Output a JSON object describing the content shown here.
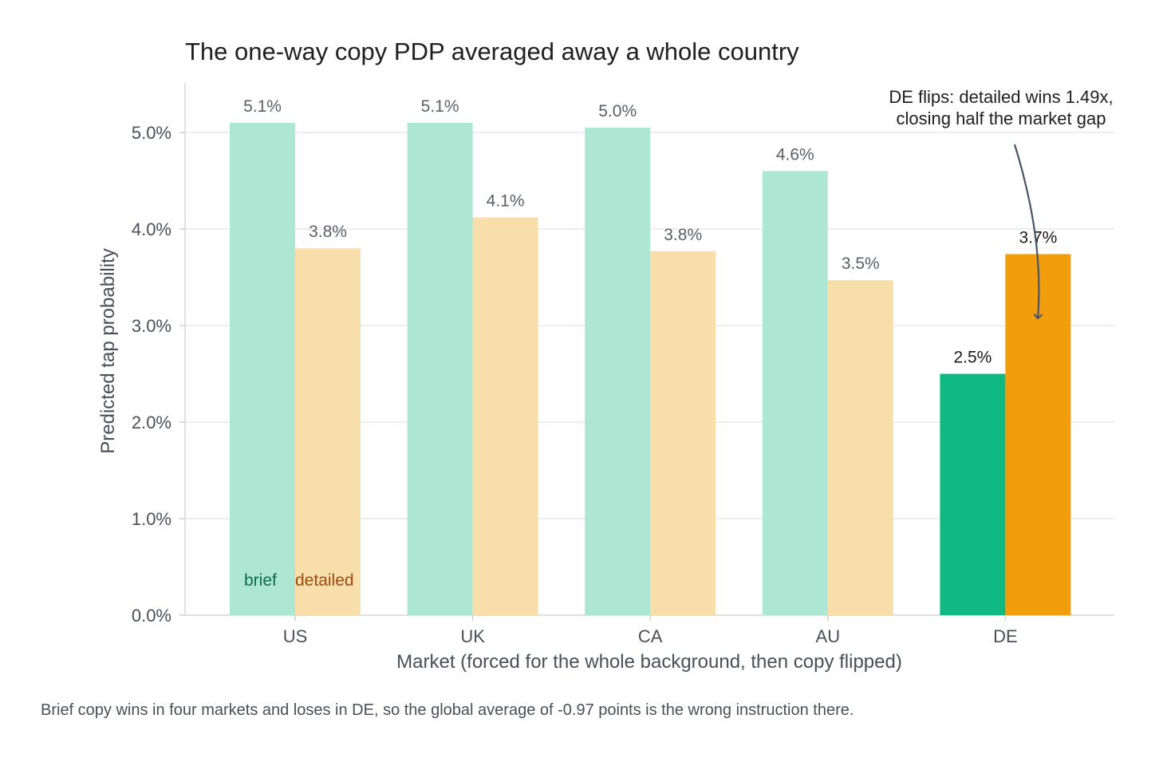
{
  "chart_data": {
    "type": "bar",
    "title": "The one-way copy PDP averaged away a whole country",
    "xlabel": "Market (forced for the whole background, then copy flipped)",
    "ylabel": "Predicted tap probability",
    "categories": [
      "US",
      "UK",
      "CA",
      "AU",
      "DE"
    ],
    "highlight_category": "DE",
    "ylim": [
      0,
      5.5
    ],
    "yticks": [
      0,
      1,
      2,
      3,
      4,
      5
    ],
    "ytick_labels": [
      "0.0%",
      "1.0%",
      "2.0%",
      "3.0%",
      "4.0%",
      "5.0%"
    ],
    "grid": "horizontal",
    "series": [
      {
        "name": "brief",
        "values": [
          5.1,
          5.1,
          5.05,
          4.6,
          2.5
        ],
        "labels": [
          "5.1%",
          "5.1%",
          "5.0%",
          "4.6%",
          "2.5%"
        ],
        "color": "#10b981",
        "muted_color": "#ade7d3",
        "legend_color": "#0b6b4c"
      },
      {
        "name": "detailed",
        "values": [
          3.8,
          4.12,
          3.77,
          3.47,
          3.74
        ],
        "labels": [
          "3.8%",
          "4.1%",
          "3.8%",
          "3.5%",
          "3.7%"
        ],
        "color": "#f29e0c",
        "muted_color": "#f8deaa",
        "legend_color": "#a0470b"
      }
    ],
    "legend_position": "bottom-left inside",
    "annotation": {
      "lines": [
        "DE flips: detailed wins 1.49x,",
        "closing half the market gap"
      ],
      "target": "DE detailed bar"
    }
  },
  "caption": "Brief copy wins in four markets and loses in DE, so the global average of -0.97 points is the wrong instruction there."
}
